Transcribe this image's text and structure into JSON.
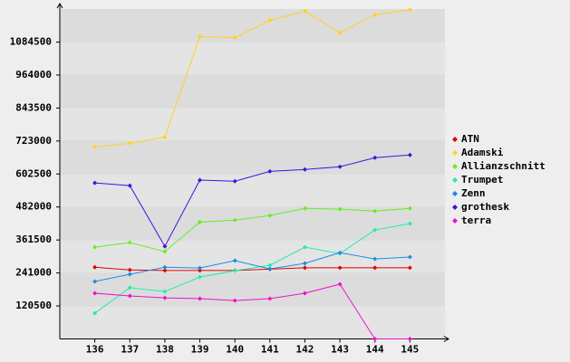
{
  "chart_data": {
    "type": "line",
    "categories": [
      "136",
      "137",
      "138",
      "139",
      "140",
      "141",
      "142",
      "143",
      "144",
      "145"
    ],
    "ylim": [
      0,
      1205000
    ],
    "yticks": [
      120500,
      241000,
      361500,
      482000,
      602500,
      723000,
      843500,
      964000,
      1084500
    ],
    "grid": true,
    "legend": "right",
    "series": [
      {
        "name": "ATN",
        "color": "#dd0000",
        "values": [
          262000,
          252000,
          250000,
          250000,
          250000,
          255000,
          260000,
          260000,
          260000,
          260000
        ]
      },
      {
        "name": "Adamski",
        "color": "#ffd21f",
        "values": [
          701000,
          715000,
          737000,
          1104000,
          1101000,
          1164000,
          1197000,
          1118000,
          1184000,
          1203000
        ]
      },
      {
        "name": "Allianzschnitt",
        "color": "#66ee22",
        "values": [
          335000,
          352000,
          319000,
          427000,
          434000,
          451000,
          477000,
          474000,
          467000,
          477000
        ]
      },
      {
        "name": "Trumpet",
        "color": "#22eeaa",
        "values": [
          94000,
          187000,
          173000,
          226000,
          249000,
          269000,
          335000,
          312000,
          398000,
          421000
        ]
      },
      {
        "name": "Zenn",
        "color": "#1a8ce6",
        "values": [
          210000,
          236000,
          262000,
          259000,
          286000,
          256000,
          276000,
          315000,
          292000,
          299000
        ]
      },
      {
        "name": "grothesk",
        "color": "#4411dd",
        "values": [
          570000,
          560000,
          338000,
          580000,
          576000,
          612000,
          619000,
          629000,
          662000,
          672000
        ]
      },
      {
        "name": "terra",
        "color": "#ee11cc",
        "values": [
          167000,
          157000,
          150000,
          147000,
          140000,
          147000,
          167000,
          200000,
          0,
          0
        ]
      }
    ]
  }
}
